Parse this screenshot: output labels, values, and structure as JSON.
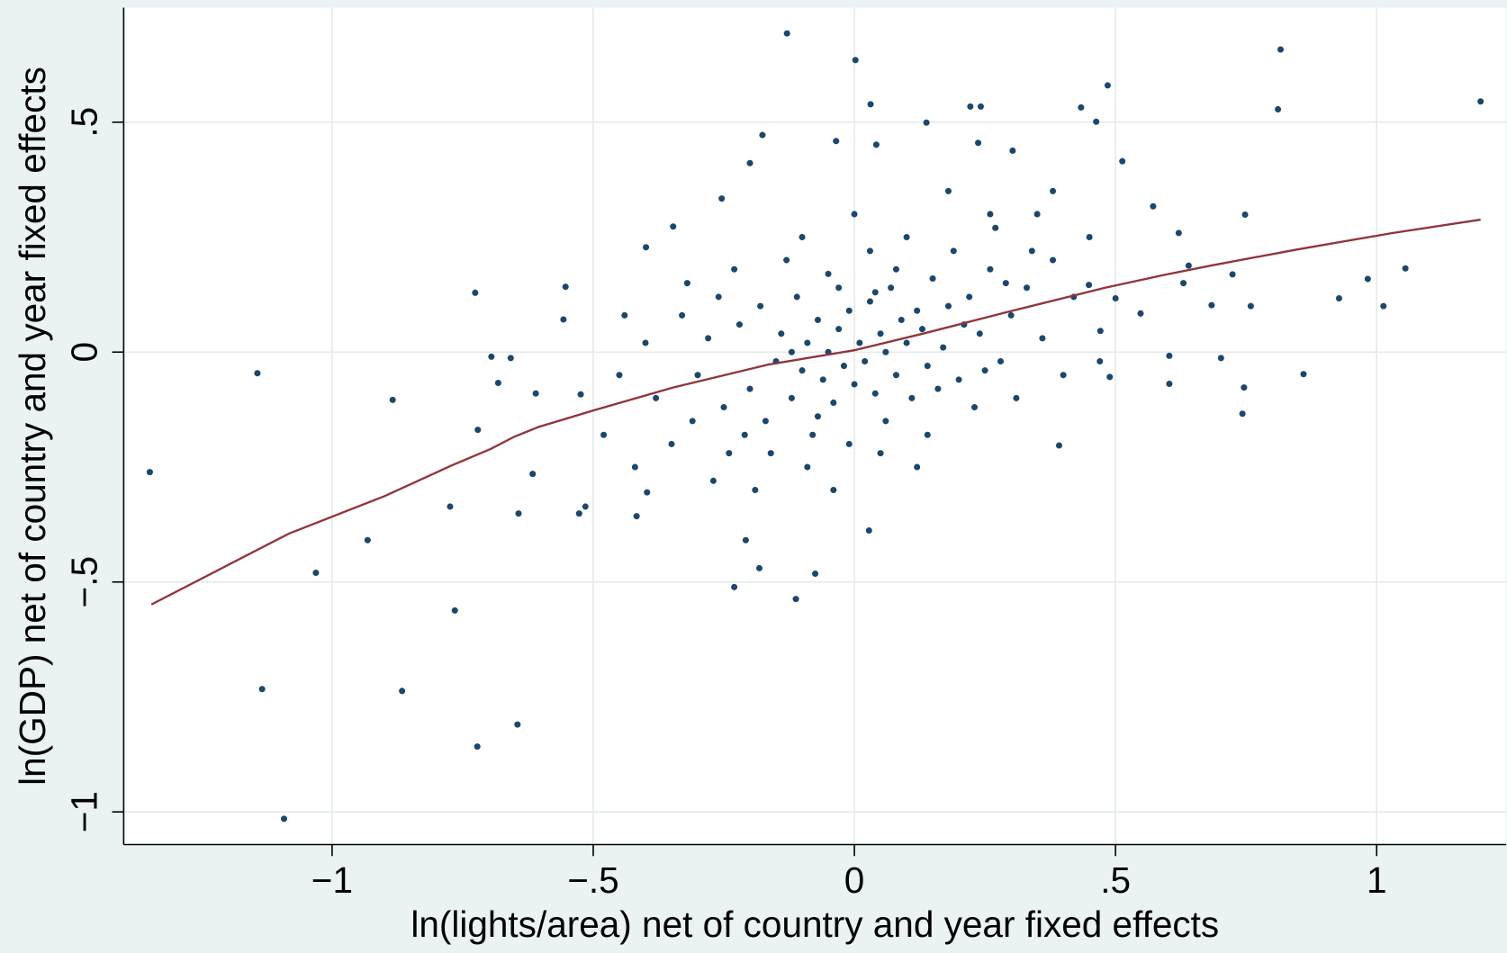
{
  "chart_data": {
    "type": "scatter",
    "xlabel": "ln(lights/area) net of country and year fixed effects",
    "ylabel": "ln(GDP) net of country and year fixed effects",
    "xlim": [
      -1.399,
      1.248
    ],
    "ylim": [
      -1.071,
      0.749
    ],
    "xticks": [
      {
        "value": -1,
        "label": "−1"
      },
      {
        "value": -0.5,
        "label": "−.5"
      },
      0,
      {
        "value": 0.5,
        "label": ".5"
      },
      1
    ],
    "yticks": [
      {
        "value": -1,
        "label": "−1"
      },
      {
        "value": -0.5,
        "label": "−.5"
      },
      0,
      {
        "value": 0.5,
        "label": ".5"
      }
    ],
    "grid": true,
    "series": [
      {
        "type": "scatter",
        "color": "#1a476f",
        "x": [
          -1.349,
          -1.143,
          -1.134,
          -1.092,
          -1.031,
          -0.932,
          -0.884,
          -0.866,
          -0.774,
          -0.765,
          -0.726,
          -0.722,
          -0.721,
          -0.645,
          -0.643,
          -0.695,
          -0.682,
          -0.658,
          -0.616,
          -0.61,
          -0.553,
          -0.557,
          -0.524,
          -0.527,
          -0.515,
          -0.399,
          -0.417,
          -0.347,
          -0.397,
          -0.254,
          -0.2,
          -0.176,
          -0.23,
          -0.208,
          -0.182,
          -0.129,
          -0.112,
          -0.075,
          -0.035,
          0.002,
          0.031,
          0.042,
          0.028,
          0.138,
          0.222,
          0.242,
          0.237,
          0.303,
          0.434,
          0.463,
          0.485,
          0.513,
          0.572,
          0.392,
          0.489,
          0.548,
          0.603,
          0.603,
          0.684,
          0.702,
          0.724,
          0.746,
          0.743,
          0.748,
          0.759,
          0.811,
          0.816,
          0.86,
          0.928,
          0.983,
          1.013,
          1.055,
          1.199,
          0.621,
          0.63,
          0.64,
          0.5,
          0.449,
          0.471,
          -0.3,
          -0.28,
          -0.25,
          -0.22,
          -0.2,
          -0.18,
          -0.17,
          -0.15,
          -0.14,
          -0.12,
          -0.11,
          -0.1,
          -0.09,
          -0.08,
          -0.07,
          -0.06,
          -0.05,
          -0.04,
          -0.03,
          -0.02,
          -0.01,
          0,
          0.01,
          0.02,
          0.03,
          0.04,
          0.05,
          0.06,
          0.07,
          0.08,
          0.09,
          0.1,
          0.11,
          0.12,
          0.13,
          0.14,
          0.15,
          0.17,
          0.18,
          0.2,
          0.22,
          0.24,
          0.26,
          0.28,
          0.3,
          0.33,
          0.36,
          0.38,
          0.4,
          -0.35,
          -0.33,
          -0.38,
          -0.4,
          -0.42,
          -0.45,
          -0.48,
          -0.27,
          -0.23,
          -0.19,
          -0.13,
          -0.09,
          -0.05,
          -0.01,
          0.03,
          0.06,
          0.1,
          0.14,
          0.19,
          0.23,
          0.27,
          0.31,
          0.35,
          0.42,
          0.45,
          0.47,
          -0.16,
          -0.21,
          -0.26,
          -0.31,
          0.16,
          0.21,
          0.25,
          0.29,
          0.34,
          0.08,
          0.04,
          -0.03,
          -0.07,
          -0.12,
          0.12,
          -0.04,
          0,
          0.18,
          -0.1,
          0.38,
          -0.32,
          -0.44,
          0.05,
          0.26,
          -0.24
        ],
        "values": [
          -0.261,
          -0.046,
          -0.733,
          -1.015,
          -0.48,
          -0.409,
          -0.104,
          -0.737,
          -0.336,
          -0.562,
          0.129,
          -0.858,
          -0.169,
          -0.81,
          -0.351,
          -0.01,
          -0.067,
          -0.013,
          -0.265,
          -0.09,
          0.142,
          0.071,
          -0.092,
          -0.351,
          -0.336,
          0.228,
          -0.357,
          0.273,
          -0.305,
          0.334,
          0.411,
          0.472,
          -0.511,
          -0.409,
          -0.47,
          0.693,
          -0.537,
          -0.482,
          0.459,
          0.635,
          0.539,
          0.451,
          -0.388,
          0.499,
          0.534,
          0.534,
          0.455,
          0.438,
          0.532,
          0.501,
          0.58,
          0.415,
          0.317,
          -0.203,
          -0.054,
          0.084,
          -0.008,
          -0.069,
          0.102,
          -0.013,
          0.169,
          -0.077,
          -0.134,
          0.299,
          0.1,
          0.528,
          0.658,
          -0.048,
          0.117,
          0.159,
          0.1,
          0.182,
          0.545,
          0.259,
          0.15,
          0.188,
          0.117,
          0.146,
          0.046,
          -0.05,
          0.03,
          -0.12,
          0.06,
          -0.08,
          0.1,
          -0.15,
          -0.02,
          0.04,
          -0.1,
          0.12,
          -0.04,
          0.02,
          -0.18,
          0.07,
          -0.06,
          0,
          -0.11,
          0.05,
          -0.03,
          0.09,
          -0.07,
          0.02,
          -0.02,
          0.11,
          -0.09,
          0.04,
          0,
          0.14,
          -0.05,
          0.07,
          0.02,
          -0.1,
          0.09,
          0.05,
          -0.03,
          0.16,
          0.01,
          0.1,
          -0.06,
          0.12,
          0.04,
          0.18,
          -0.02,
          0.08,
          0.14,
          0.03,
          0.2,
          -0.05,
          -0.2,
          0.08,
          -0.1,
          0.02,
          -0.25,
          -0.05,
          -0.18,
          -0.28,
          0.18,
          -0.3,
          0.2,
          -0.25,
          0.17,
          -0.2,
          0.22,
          -0.15,
          0.25,
          -0.18,
          0.22,
          -0.12,
          0.27,
          -0.1,
          0.3,
          0.12,
          0.25,
          -0.02,
          -0.22,
          -0.18,
          0.12,
          -0.15,
          -0.08,
          0.06,
          -0.04,
          0.15,
          0.22,
          0.18,
          0.13,
          0.14,
          -0.14,
          0,
          -0.25,
          -0.3,
          0.3,
          0.35,
          0.25,
          0.35,
          0.15,
          0.08,
          -0.22,
          0.3,
          -0.22
        ]
      },
      {
        "type": "line",
        "color": "#90353b",
        "x": [
          -1.346,
          -1.083,
          -0.899,
          -0.77,
          -0.697,
          -0.651,
          -0.605,
          -0.494,
          -0.347,
          -0.164,
          0,
          0.131,
          0.296,
          0.48,
          0.59,
          0.682,
          0.847,
          1.031,
          1.199
        ],
        "values": [
          -0.549,
          -0.395,
          -0.313,
          -0.246,
          -0.211,
          -0.184,
          -0.163,
          -0.125,
          -0.077,
          -0.027,
          0.004,
          0.04,
          0.088,
          0.14,
          0.167,
          0.188,
          0.223,
          0.259,
          0.288
        ]
      }
    ]
  }
}
